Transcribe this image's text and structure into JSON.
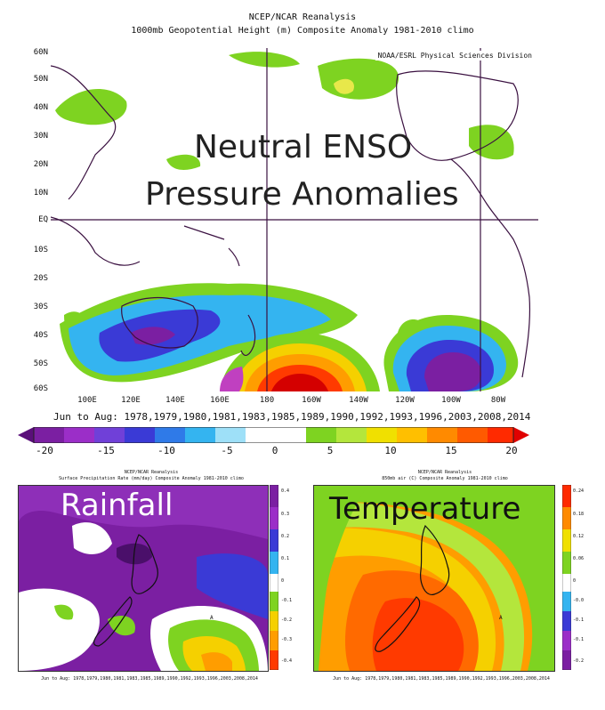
{
  "main": {
    "title1": "NCEP/NCAR Reanalysis",
    "title2": "1000mb Geopotential Height (m) Composite Anomaly 1981-2010 climo",
    "credit": "NOAA/ESRL Physical Sciences Division",
    "overlay_line1": "Neutral ENSO",
    "overlay_line2": "Pressure Anomalies",
    "lat_labels": [
      "60N",
      "50N",
      "40N",
      "30N",
      "20N",
      "10N",
      "EQ",
      "10S",
      "20S",
      "30S",
      "40S",
      "50S",
      "60S"
    ],
    "lon_labels": [
      "100E",
      "120E",
      "140E",
      "160E",
      "180",
      "160W",
      "140W",
      "120W",
      "100W",
      "80W"
    ],
    "years": "Jun to Aug: 1978,1979,1980,1981,1983,1985,1989,1990,1992,1993,1996,2003,2008,2014",
    "colorbar_labels": [
      "-20",
      "-15",
      "-10",
      "-5",
      "0",
      "5",
      "10",
      "15",
      "20"
    ]
  },
  "rainfall": {
    "label": "Rainfall",
    "title1": "NCEP/NCAR Reanalysis",
    "title2": "Surface Precipitation Rate (mm/day) Composite Anomaly 1981-2010 climo",
    "years": "Jun to Aug: 1978,1979,1980,1981,1983,1985,1989,1990,1992,1993,1996,2003,2008,2014",
    "scale": [
      "0.4",
      "0.3",
      "0.2",
      "0.1",
      "0",
      "-0.1",
      "-0.2",
      "-0.3",
      "-0.4"
    ]
  },
  "temperature": {
    "label": "Temperature",
    "title1": "NCEP/NCAR Reanalysis",
    "title2": "850mb air (C) Composite Anomaly 1981-2010 climo",
    "years": "Jun to Aug: 1978,1979,1980,1981,1983,1985,1989,1990,1992,1993,1996,2003,2008,2014",
    "scale": [
      "0.24",
      "0.18",
      "0.12",
      "0.06",
      "0",
      "-0.0",
      "-0.1",
      "-0.1",
      "-0.2"
    ]
  },
  "colors": {
    "anom_neg_strong": "#7b1fa2",
    "anom_neg": "#3a3ad6",
    "anom_neg_light": "#34b4f0",
    "anom_pos_light": "#7ed321",
    "anom_pos": "#f5d000",
    "anom_pos_strong": "#ff3a00"
  }
}
